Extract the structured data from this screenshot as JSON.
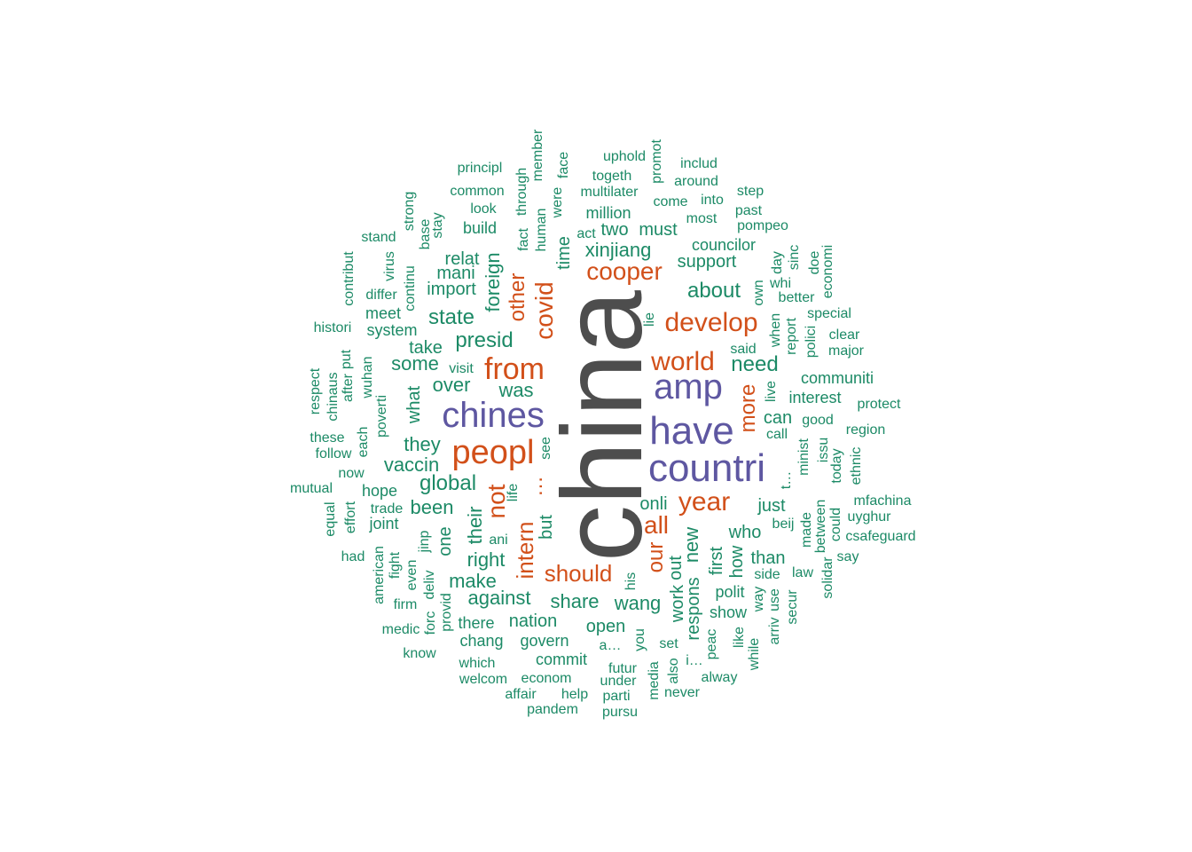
{
  "colors": {
    "background": "#ffffff",
    "tier1": "#4D4D4D",
    "tier2": "#5E57A1",
    "tier3": "#D2501A",
    "tier4": "#1C8A66"
  },
  "words": [
    {
      "text": "china",
      "tier": 1
    },
    {
      "text": "countri",
      "tier": 2
    },
    {
      "text": "have",
      "tier": 2
    },
    {
      "text": "chines",
      "tier": 2
    },
    {
      "text": "amp",
      "tier": 2
    },
    {
      "text": "peopl",
      "tier": 3
    },
    {
      "text": "from",
      "tier": 3
    },
    {
      "text": "develop",
      "tier": 3
    },
    {
      "text": "world",
      "tier": 3
    },
    {
      "text": "year",
      "tier": 3
    },
    {
      "text": "cooper",
      "tier": 3
    },
    {
      "text": "covid",
      "tier": 3
    },
    {
      "text": "not",
      "tier": 3
    },
    {
      "text": "intern",
      "tier": 3
    },
    {
      "text": "should",
      "tier": 3
    },
    {
      "text": "all",
      "tier": 3
    },
    {
      "text": "more",
      "tier": 3
    },
    {
      "text": "other",
      "tier": 3
    },
    {
      "text": "our",
      "tier": 3
    },
    {
      "text": "…",
      "tier": 3
    },
    {
      "text": "presid",
      "tier": 4
    },
    {
      "text": "state",
      "tier": 4
    },
    {
      "text": "global",
      "tier": 4
    },
    {
      "text": "about",
      "tier": 4
    },
    {
      "text": "need",
      "tier": 4
    },
    {
      "text": "xinjiang",
      "tier": 4
    },
    {
      "text": "foreign",
      "tier": 4
    },
    {
      "text": "over",
      "tier": 4
    },
    {
      "text": "was",
      "tier": 4
    },
    {
      "text": "some",
      "tier": 4
    },
    {
      "text": "they",
      "tier": 4
    },
    {
      "text": "vaccin",
      "tier": 4
    },
    {
      "text": "been",
      "tier": 4
    },
    {
      "text": "their",
      "tier": 4
    },
    {
      "text": "right",
      "tier": 4
    },
    {
      "text": "make",
      "tier": 4
    },
    {
      "text": "against",
      "tier": 4
    },
    {
      "text": "share",
      "tier": 4
    },
    {
      "text": "wang",
      "tier": 4
    },
    {
      "text": "new",
      "tier": 4
    },
    {
      "text": "time",
      "tier": 4
    },
    {
      "text": "support",
      "tier": 4
    },
    {
      "text": "onli",
      "tier": 4
    },
    {
      "text": "just",
      "tier": 4
    },
    {
      "text": "who",
      "tier": 4
    },
    {
      "text": "nation",
      "tier": 4
    },
    {
      "text": "open",
      "tier": 4
    },
    {
      "text": "one",
      "tier": 4
    },
    {
      "text": "but",
      "tier": 4
    },
    {
      "text": "what",
      "tier": 4
    },
    {
      "text": "import",
      "tier": 4
    },
    {
      "text": "mani",
      "tier": 4
    },
    {
      "text": "relat",
      "tier": 4
    },
    {
      "text": "take",
      "tier": 4
    },
    {
      "text": "two",
      "tier": 4
    },
    {
      "text": "must",
      "tier": 4
    },
    {
      "text": "million",
      "tier": 4
    },
    {
      "text": "councilor",
      "tier": 4
    },
    {
      "text": "interest",
      "tier": 4
    },
    {
      "text": "communiti",
      "tier": 4
    },
    {
      "text": "can",
      "tier": 4
    },
    {
      "text": "than",
      "tier": 4
    },
    {
      "text": "first",
      "tier": 4
    },
    {
      "text": "how",
      "tier": 4
    },
    {
      "text": "out",
      "tier": 4
    },
    {
      "text": "work",
      "tier": 4
    },
    {
      "text": "respons",
      "tier": 4
    },
    {
      "text": "polit",
      "tier": 4
    },
    {
      "text": "show",
      "tier": 4
    },
    {
      "text": "govern",
      "tier": 4
    },
    {
      "text": "commit",
      "tier": 4
    },
    {
      "text": "chang",
      "tier": 4
    },
    {
      "text": "there",
      "tier": 4
    },
    {
      "text": "hope",
      "tier": 4
    },
    {
      "text": "joint",
      "tier": 4
    },
    {
      "text": "system",
      "tier": 4
    },
    {
      "text": "meet",
      "tier": 4
    },
    {
      "text": "differ",
      "tier": 4
    },
    {
      "text": "histori",
      "tier": 4
    },
    {
      "text": "build",
      "tier": 4
    },
    {
      "text": "look",
      "tier": 4
    },
    {
      "text": "common",
      "tier": 4
    },
    {
      "text": "principl",
      "tier": 4
    },
    {
      "text": "fact",
      "tier": 4
    },
    {
      "text": "through",
      "tier": 4
    },
    {
      "text": "human",
      "tier": 4
    },
    {
      "text": "member",
      "tier": 4
    },
    {
      "text": "were",
      "tier": 4
    },
    {
      "text": "face",
      "tier": 4
    },
    {
      "text": "act",
      "tier": 4
    },
    {
      "text": "togeth",
      "tier": 4
    },
    {
      "text": "uphold",
      "tier": 4
    },
    {
      "text": "multilater",
      "tier": 4
    },
    {
      "text": "promot",
      "tier": 4
    },
    {
      "text": "includ",
      "tier": 4
    },
    {
      "text": "around",
      "tier": 4
    },
    {
      "text": "come",
      "tier": 4
    },
    {
      "text": "into",
      "tier": 4
    },
    {
      "text": "most",
      "tier": 4
    },
    {
      "text": "step",
      "tier": 4
    },
    {
      "text": "past",
      "tier": 4
    },
    {
      "text": "pompeo",
      "tier": 4
    },
    {
      "text": "day",
      "tier": 4
    },
    {
      "text": "sinc",
      "tier": 4
    },
    {
      "text": "doe",
      "tier": 4
    },
    {
      "text": "economi",
      "tier": 4
    },
    {
      "text": "whi",
      "tier": 4
    },
    {
      "text": "own",
      "tier": 4
    },
    {
      "text": "better",
      "tier": 4
    },
    {
      "text": "special",
      "tier": 4
    },
    {
      "text": "when",
      "tier": 4
    },
    {
      "text": "report",
      "tier": 4
    },
    {
      "text": "polici",
      "tier": 4
    },
    {
      "text": "clear",
      "tier": 4
    },
    {
      "text": "major",
      "tier": 4
    },
    {
      "text": "said",
      "tier": 4
    },
    {
      "text": "live",
      "tier": 4
    },
    {
      "text": "lie",
      "tier": 4
    },
    {
      "text": "protect",
      "tier": 4
    },
    {
      "text": "good",
      "tier": 4
    },
    {
      "text": "region",
      "tier": 4
    },
    {
      "text": "call",
      "tier": 4
    },
    {
      "text": "minist",
      "tier": 4
    },
    {
      "text": "issu",
      "tier": 4
    },
    {
      "text": "today",
      "tier": 4
    },
    {
      "text": "ethnic",
      "tier": 4
    },
    {
      "text": "t…",
      "tier": 4
    },
    {
      "text": "made",
      "tier": 4
    },
    {
      "text": "between",
      "tier": 4
    },
    {
      "text": "could",
      "tier": 4
    },
    {
      "text": "mfachina",
      "tier": 4
    },
    {
      "text": "uyghur",
      "tier": 4
    },
    {
      "text": "csafeguard",
      "tier": 4
    },
    {
      "text": "say",
      "tier": 4
    },
    {
      "text": "beij",
      "tier": 4
    },
    {
      "text": "law",
      "tier": 4
    },
    {
      "text": "side",
      "tier": 4
    },
    {
      "text": "solidar",
      "tier": 4
    },
    {
      "text": "use",
      "tier": 4
    },
    {
      "text": "secur",
      "tier": 4
    },
    {
      "text": "way",
      "tier": 4
    },
    {
      "text": "arriv",
      "tier": 4
    },
    {
      "text": "like",
      "tier": 4
    },
    {
      "text": "while",
      "tier": 4
    },
    {
      "text": "peac",
      "tier": 4
    },
    {
      "text": "alway",
      "tier": 4
    },
    {
      "text": "i…",
      "tier": 4
    },
    {
      "text": "set",
      "tier": 4
    },
    {
      "text": "also",
      "tier": 4
    },
    {
      "text": "never",
      "tier": 4
    },
    {
      "text": "media",
      "tier": 4
    },
    {
      "text": "you",
      "tier": 4
    },
    {
      "text": "futur",
      "tier": 4
    },
    {
      "text": "under",
      "tier": 4
    },
    {
      "text": "parti",
      "tier": 4
    },
    {
      "text": "pursu",
      "tier": 4
    },
    {
      "text": "help",
      "tier": 4
    },
    {
      "text": "a…",
      "tier": 4
    },
    {
      "text": "his",
      "tier": 4
    },
    {
      "text": "affair",
      "tier": 4
    },
    {
      "text": "pandem",
      "tier": 4
    },
    {
      "text": "econom",
      "tier": 4
    },
    {
      "text": "welcom",
      "tier": 4
    },
    {
      "text": "which",
      "tier": 4
    },
    {
      "text": "know",
      "tier": 4
    },
    {
      "text": "medic",
      "tier": 4
    },
    {
      "text": "provid",
      "tier": 4
    },
    {
      "text": "forc",
      "tier": 4
    },
    {
      "text": "deliv",
      "tier": 4
    },
    {
      "text": "even",
      "tier": 4
    },
    {
      "text": "firm",
      "tier": 4
    },
    {
      "text": "fight",
      "tier": 4
    },
    {
      "text": "american",
      "tier": 4
    },
    {
      "text": "had",
      "tier": 4
    },
    {
      "text": "equal",
      "tier": 4
    },
    {
      "text": "effort",
      "tier": 4
    },
    {
      "text": "trade",
      "tier": 4
    },
    {
      "text": "mutual",
      "tier": 4
    },
    {
      "text": "now",
      "tier": 4
    },
    {
      "text": "follow",
      "tier": 4
    },
    {
      "text": "these",
      "tier": 4
    },
    {
      "text": "each",
      "tier": 4
    },
    {
      "text": "poverti",
      "tier": 4
    },
    {
      "text": "wuhan",
      "tier": 4
    },
    {
      "text": "after",
      "tier": 4
    },
    {
      "text": "put",
      "tier": 4
    },
    {
      "text": "chinaus",
      "tier": 4
    },
    {
      "text": "respect",
      "tier": 4
    },
    {
      "text": "visit",
      "tier": 4
    },
    {
      "text": "see",
      "tier": 4
    },
    {
      "text": "life",
      "tier": 4
    },
    {
      "text": "ani",
      "tier": 4
    },
    {
      "text": "jinp",
      "tier": 4
    },
    {
      "text": "virus",
      "tier": 4
    },
    {
      "text": "contribut",
      "tier": 4
    },
    {
      "text": "stand",
      "tier": 4
    },
    {
      "text": "continu",
      "tier": 4
    },
    {
      "text": "strong",
      "tier": 4
    },
    {
      "text": "base",
      "tier": 4
    },
    {
      "text": "stay",
      "tier": 4
    }
  ]
}
